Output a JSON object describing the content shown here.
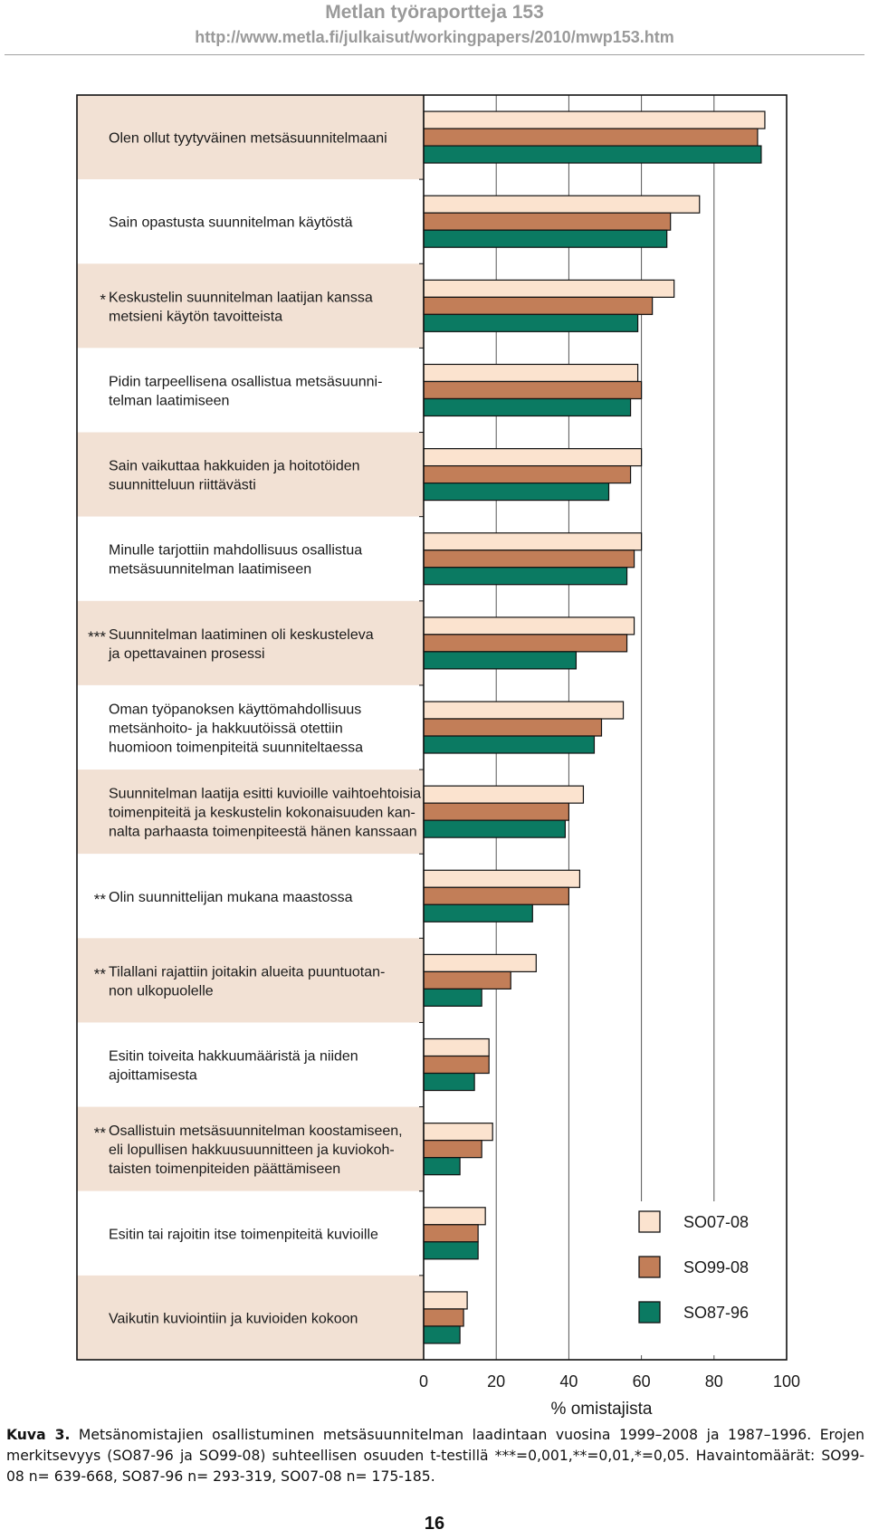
{
  "header": {
    "title": "Metlan työraportteja 153",
    "url": "http://www.metla.fi/julkaisut/workingpapers/2010/mwp153.htm"
  },
  "chart_data": {
    "type": "bar",
    "orientation": "horizontal",
    "xlabel": "% omistajista",
    "xlim": [
      0,
      100
    ],
    "xticks": [
      "0",
      "20",
      "40",
      "60",
      "80",
      "100"
    ],
    "grid": true,
    "legend_position": "bottom-right",
    "categories": [
      {
        "marker": "",
        "lines": [
          "Olen ollut tyytyväinen metsäsuunnitelmaani"
        ]
      },
      {
        "marker": "",
        "lines": [
          "Sain opastusta suunnitelman käytöstä"
        ]
      },
      {
        "marker": "*",
        "lines": [
          "Keskustelin suunnitelman laatijan kanssa",
          "metsieni käytön tavoitteista"
        ]
      },
      {
        "marker": "",
        "lines": [
          "Pidin tarpeellisena osallistua metsäsuunni-",
          "telman laatimiseen"
        ]
      },
      {
        "marker": "",
        "lines": [
          "Sain vaikuttaa hakkuiden ja hoitotöiden",
          "suunnitteluun riittävästi"
        ]
      },
      {
        "marker": "",
        "lines": [
          "Minulle tarjottiin mahdollisuus osallistua",
          "metsäsuunnitelman laatimiseen"
        ]
      },
      {
        "marker": "***",
        "lines": [
          "Suunnitelman laatiminen oli keskusteleva",
          "ja opettavainen prosessi"
        ]
      },
      {
        "marker": "",
        "lines": [
          "Oman työpanoksen käyttömahdollisuus",
          "metsänhoito- ja hakkuutöissä otettiin",
          "huomioon toimenpiteitä suunniteltaessa"
        ]
      },
      {
        "marker": "",
        "lines": [
          "Suunnitelman laatija esitti kuvioille vaihtoehtoisia",
          "toimenpiteitä ja keskustelin kokonaisuuden kan-",
          "nalta parhaasta toimenpiteestä hänen kanssaan"
        ]
      },
      {
        "marker": "**",
        "lines": [
          "Olin suunnittelijan mukana maastossa"
        ]
      },
      {
        "marker": "**",
        "lines": [
          "Tilallani rajattiin joitakin alueita puuntuotan-",
          "non ulkopuolelle"
        ]
      },
      {
        "marker": "",
        "lines": [
          "Esitin toiveita hakkuumääristä ja niiden",
          "ajoittamisesta"
        ]
      },
      {
        "marker": "**",
        "lines": [
          "Osallistuin metsäsuunnitelman koostamiseen,",
          "eli lopullisen hakkuusuunnitteen ja kuviokoh-",
          "taisten toimenpiteiden päättämiseen"
        ]
      },
      {
        "marker": "",
        "lines": [
          "Esitin tai rajoitin itse toimenpiteitä kuvioille"
        ]
      },
      {
        "marker": "",
        "lines": [
          "Vaikutin kuviointiin ja kuvioiden kokoon"
        ]
      }
    ],
    "series": [
      {
        "name": "SO07-08",
        "color": "#fbe3cf",
        "values": [
          94,
          76,
          69,
          59,
          60,
          60,
          58,
          55,
          44,
          43,
          31,
          18,
          19,
          17,
          12
        ]
      },
      {
        "name": "SO99-08",
        "color": "#c27e58",
        "values": [
          92,
          68,
          63,
          60,
          57,
          58,
          56,
          49,
          40,
          40,
          24,
          18,
          16,
          15,
          11
        ]
      },
      {
        "name": "SO87-96",
        "color": "#0b7a62",
        "values": [
          93,
          67,
          59,
          57,
          51,
          56,
          42,
          47,
          39,
          30,
          16,
          14,
          10,
          15,
          10
        ]
      }
    ]
  },
  "caption": {
    "label": "Kuva 3.",
    "text": "Metsänomistajien osallistuminen metsäsuunnitelman laadintaan vuosina 1999–2008 ja 1987–1996. Erojen merkitsevyys (SO87-96 ja SO99-08) suhteellisen osuuden t-testillä ***=0,001,**=0,01,*=0,05. Havaintomäärät: SO99-08 n= 639-668, SO87-96 n= 293-319, SO07-08 n= 175-185."
  },
  "page_number": "16"
}
